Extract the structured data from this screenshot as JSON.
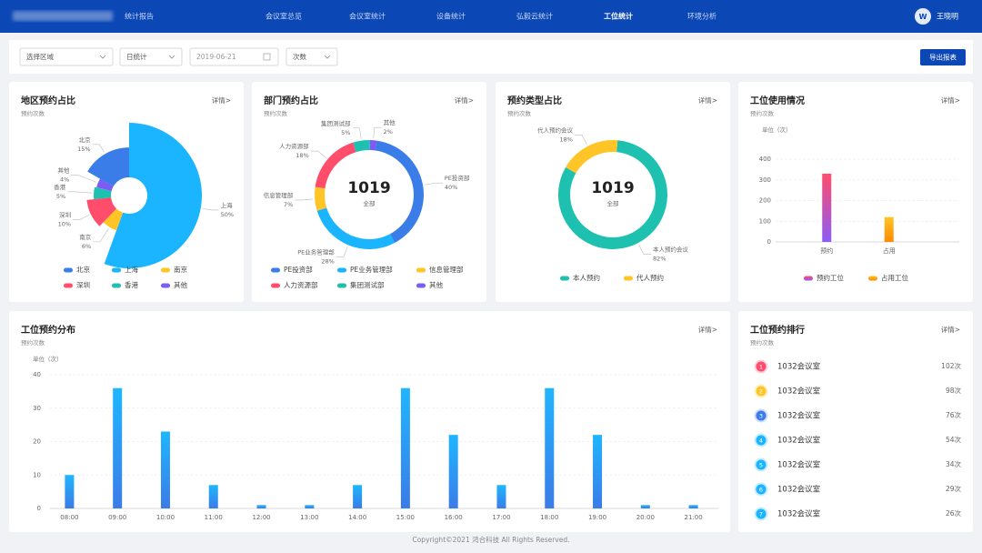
{
  "header": {
    "brand": "统计报告",
    "nav": [
      "会议室总览",
      "会议室统计",
      "设备统计",
      "弘毅云统计",
      "工位统计",
      "环境分析"
    ],
    "active": 4,
    "user": {
      "avatar": "W",
      "name": "王晓明"
    }
  },
  "filters": {
    "region": "选择区域",
    "period": "日统计",
    "date": "2019-06-21",
    "metric": "次数",
    "export": "导出报表"
  },
  "chart_data": [
    {
      "type": "pie",
      "rose": true,
      "title": "地区预约占比",
      "subtitle": "预约次数",
      "link": "详情>",
      "categories": [
        "北京",
        "上海",
        "南京",
        "深圳",
        "香港",
        "其他"
      ],
      "values": [
        15,
        50,
        6,
        10,
        5,
        4
      ],
      "value_labels": [
        "15%",
        "50%",
        "6%",
        "10%",
        "5%",
        "4%"
      ],
      "colors": [
        "#3a7ce8",
        "#1ab4ff",
        "#ffc425",
        "#ff4d6b",
        "#1ec0b0",
        "#7b5cf5"
      ]
    },
    {
      "type": "pie",
      "title": "部门预约占比",
      "subtitle": "预约次数",
      "link": "详情>",
      "categories": [
        "PE投资部",
        "PE业务管理部",
        "信息管理部",
        "人力资源部",
        "集团测试部",
        "其他"
      ],
      "values": [
        40,
        28,
        7,
        18,
        5,
        2
      ],
      "value_labels": [
        "40%",
        "28%",
        "7%",
        "18%",
        "5%",
        "2%"
      ],
      "colors": [
        "#3a7ce8",
        "#1ab4ff",
        "#ffc425",
        "#ff4d6b",
        "#1ec0b0",
        "#7b5cf5"
      ],
      "center_value": 1019,
      "center_label": "全部"
    },
    {
      "type": "pie",
      "title": "预约类型占比",
      "subtitle": "预约次数",
      "link": "详情>",
      "categories": [
        "本人预约",
        "代人预约"
      ],
      "labels": [
        "本人预约会议",
        "代人预约会议"
      ],
      "values": [
        82,
        18
      ],
      "value_labels": [
        "82%",
        "18%"
      ],
      "colors": [
        "#1ec0b0",
        "#ffc425"
      ],
      "center_value": 1019,
      "center_label": "全部"
    },
    {
      "type": "bar",
      "title": "工位使用情况",
      "subtitle": "预约次数",
      "link": "详情>",
      "y_label": "单位（次）",
      "categories": [
        "预约",
        "占用"
      ],
      "values": [
        330,
        120
      ],
      "legend": [
        "预约工位",
        "占用工位"
      ],
      "colors": [
        [
          "#ff4d6b",
          "#8b5cf6"
        ],
        [
          "#ffc425",
          "#ff8a00"
        ]
      ],
      "ylim": [
        0,
        400
      ],
      "yticks": [
        0,
        100,
        200,
        300,
        400
      ],
      "grid": true
    },
    {
      "type": "bar",
      "title": "工位预约分布",
      "subtitle": "预约次数",
      "link": "详情>",
      "y_label": "单位（次）",
      "categories": [
        "08:00",
        "09:00",
        "10:00",
        "11:00",
        "12:00",
        "13:00",
        "14:00",
        "15:00",
        "16:00",
        "17:00",
        "18:00",
        "19:00",
        "20:00",
        "21:00"
      ],
      "values": [
        10,
        36,
        23,
        7,
        1,
        1,
        7,
        36,
        22,
        7,
        36,
        22,
        1,
        1
      ],
      "color": [
        "#1fb6ff",
        "#3a7ce8"
      ],
      "ylim": [
        0,
        40
      ],
      "yticks": [
        0,
        10,
        20,
        30,
        40
      ],
      "grid": true
    }
  ],
  "ranking": {
    "title": "工位预约排行",
    "subtitle": "预约次数",
    "link": "详情>",
    "rows": [
      {
        "rank": 1,
        "name": "1032会议室",
        "count": "102次",
        "color": "#ff4d6b"
      },
      {
        "rank": 2,
        "name": "1032会议室",
        "count": "98次",
        "color": "#ffc425"
      },
      {
        "rank": 3,
        "name": "1032会议室",
        "count": "76次",
        "color": "#3a7ce8"
      },
      {
        "rank": 4,
        "name": "1032会议室",
        "count": "54次",
        "color": "#1ab4ff"
      },
      {
        "rank": 5,
        "name": "1032会议室",
        "count": "34次",
        "color": "#1ab4ff"
      },
      {
        "rank": 6,
        "name": "1032会议室",
        "count": "29次",
        "color": "#1ab4ff"
      },
      {
        "rank": 7,
        "name": "1032会议室",
        "count": "26次",
        "color": "#1ab4ff"
      }
    ]
  },
  "footer": "Copyright©2021 鸿合科技 All Rights Reserved."
}
